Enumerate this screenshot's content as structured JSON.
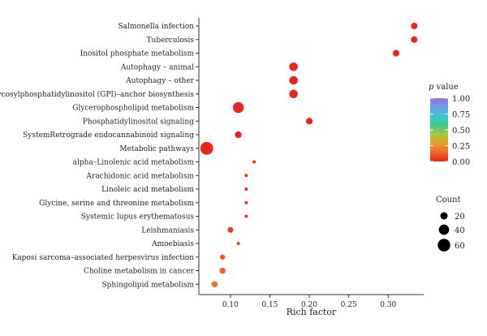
{
  "chart_data": {
    "type": "scatter",
    "xlabel": "Rich factor",
    "ylabel": "",
    "xlim": [
      0.06,
      0.345
    ],
    "x_ticks": [
      "0.10",
      "0.15",
      "0.20",
      "0.25",
      "0.30"
    ],
    "x_tick_values": [
      0.1,
      0.15,
      0.2,
      0.25,
      0.3
    ],
    "grid": false,
    "points": [
      {
        "term": "Salmonella infection",
        "rich_factor": 0.333,
        "count": 16,
        "p_value": 0.0
      },
      {
        "term": "Tuberculosis",
        "rich_factor": 0.333,
        "count": 16,
        "p_value": 0.0
      },
      {
        "term": "Inositol phosphate metabolism",
        "rich_factor": 0.31,
        "count": 17,
        "p_value": 0.01
      },
      {
        "term": "Autophagy – animal",
        "rich_factor": 0.18,
        "count": 28,
        "p_value": 0.0
      },
      {
        "term": "Autophagy – other",
        "rich_factor": 0.18,
        "count": 28,
        "p_value": 0.0
      },
      {
        "term": "Glycosylphosphatidylinositol (GPI)–anchor biosynthesis",
        "rich_factor": 0.18,
        "count": 28,
        "p_value": 0.0
      },
      {
        "term": "Glycerophospholipid metabolism",
        "rich_factor": 0.11,
        "count": 45,
        "p_value": 0.0
      },
      {
        "term": "Phosphatidylinositol signaling",
        "rich_factor": 0.2,
        "count": 17,
        "p_value": 0.0
      },
      {
        "term": "SystemRetrograde endocannabinoid signaling",
        "rich_factor": 0.11,
        "count": 17,
        "p_value": 0.0
      },
      {
        "term": "Metabolic pathways",
        "rich_factor": 0.07,
        "count": 62,
        "p_value": 0.0
      },
      {
        "term": "alpha–Linolenic acid metabolism",
        "rich_factor": 0.13,
        "count": 4,
        "p_value": 0.02
      },
      {
        "term": "Arachidonic acid metabolism",
        "rich_factor": 0.12,
        "count": 4,
        "p_value": 0.02
      },
      {
        "term": "Linoleic acid metabolism",
        "rich_factor": 0.12,
        "count": 4,
        "p_value": 0.02
      },
      {
        "term": "Glycine, serine and threonine metabolism",
        "rich_factor": 0.12,
        "count": 4,
        "p_value": 0.02
      },
      {
        "term": "Systemic lupus erythematosus",
        "rich_factor": 0.12,
        "count": 4,
        "p_value": 0.02
      },
      {
        "term": "Leishmaniasis",
        "rich_factor": 0.1,
        "count": 12,
        "p_value": 0.05
      },
      {
        "term": "Amoebiasis",
        "rich_factor": 0.11,
        "count": 4,
        "p_value": 0.05
      },
      {
        "term": "Kaposi sarcoma–associated herpesvirus infection",
        "rich_factor": 0.09,
        "count": 10,
        "p_value": 0.1
      },
      {
        "term": "Choline metabolism in cancer",
        "rich_factor": 0.09,
        "count": 14,
        "p_value": 0.12
      },
      {
        "term": "Sphingolipid metabolism",
        "rich_factor": 0.08,
        "count": 14,
        "p_value": 0.16
      }
    ],
    "legend_color": {
      "title_italic": "p",
      "title_rest": " value",
      "ticks": [
        "1.00",
        "0.75",
        "0.50",
        "0.25",
        "0.00"
      ],
      "tick_values": [
        1.0,
        0.75,
        0.5,
        0.25,
        0.0
      ],
      "colors": [
        "#e8261f",
        "#f06a2a",
        "#e89a2a",
        "#a8c83c",
        "#3ec88a",
        "#38c6d8",
        "#6ea0e8",
        "#9b6ee0"
      ],
      "position": "right"
    },
    "legend_size": {
      "title": "Count",
      "labels": [
        "20",
        "40",
        "60"
      ],
      "values": [
        20,
        40,
        60
      ],
      "position": "right"
    }
  }
}
